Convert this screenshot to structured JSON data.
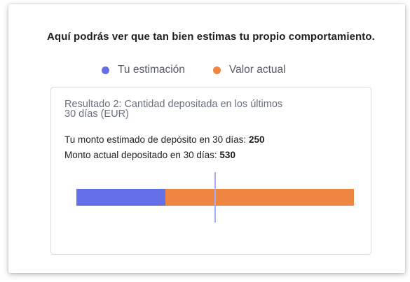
{
  "headline": "Aquí podrás ver que tan bien estimas tu propio comportamiento.",
  "legend": [
    {
      "label": "Tu estimación",
      "color": "#6570E8"
    },
    {
      "label": "Valor actual",
      "color": "#EE8540"
    }
  ],
  "result": {
    "title": "Resultado 2: Cantidad depositada en los últimos 30 días (EUR)",
    "estimated_label": "Tu monto estimado de depósito en 30 días:",
    "estimated_value": "250",
    "actual_label": "Monto actual depositado en 30 días:",
    "actual_value": "530"
  },
  "bar": {
    "estimated": 250,
    "actual": 530,
    "estimated_color": "#6570E8",
    "actual_color": "#EE8540",
    "marker_color": "#A9ADEF"
  }
}
